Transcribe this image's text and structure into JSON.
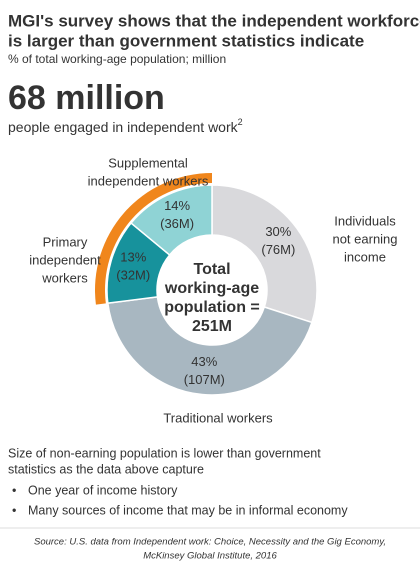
{
  "chart_data": {
    "type": "donut",
    "title": [
      "MGI's survey shows that the independent workforce",
      "is larger than government statistics indicate"
    ],
    "subtitle": "% of total working-age population; million",
    "headline": "68 million",
    "headline_caption": "people engaged in independent work",
    "headline_footnote": "2",
    "categories": [
      [
        "Individuals",
        "not earning",
        "income"
      ],
      [
        "Traditional workers"
      ],
      [
        "Primary",
        "independent",
        "workers"
      ],
      [
        "Supplemental",
        "independent workers"
      ]
    ],
    "values": [
      30,
      43,
      13,
      14
    ],
    "value_labels": [
      "30%",
      "43%",
      "13%",
      "14%"
    ],
    "million_labels": [
      "(76M)",
      "(107M)",
      "(32M)",
      "(36M)"
    ],
    "colors": [
      "#d9d9dc",
      "#a8b7c1",
      "#17929c",
      "#8fd3d5"
    ],
    "highlight": [
      2,
      3
    ],
    "highlight_color": "#f0861c",
    "center_label": [
      "Total",
      "working-age",
      "population =",
      "251M"
    ],
    "notes": [
      "Size of non-earning population is lower than government",
      "statistics as the data above capture"
    ],
    "bullets": [
      "One year of income history",
      "Many sources of income that may be in informal economy"
    ],
    "source": [
      "Source: U.S. data from Independent work: Choice, Necessity and the Gig Economy,",
      "McKinsey Global Institute, 2016"
    ]
  }
}
